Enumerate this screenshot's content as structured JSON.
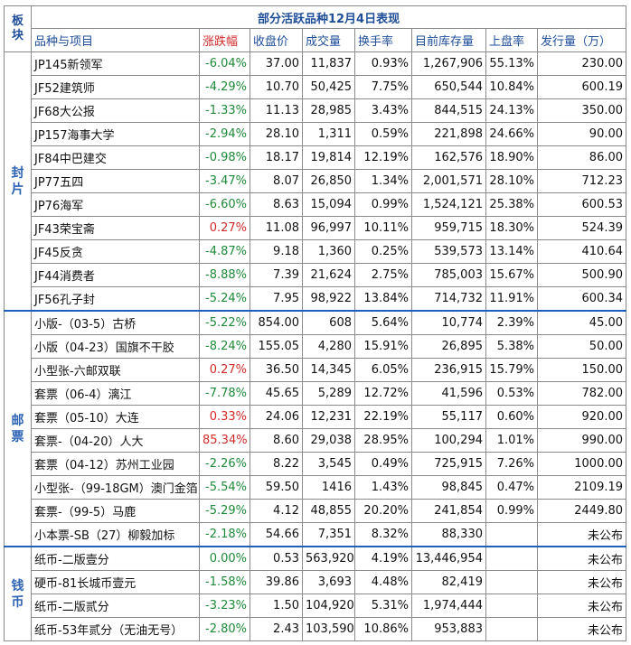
{
  "title": "部分活跃品种12月4日表现",
  "headers": {
    "category": "板块",
    "name": "品种与项目",
    "change": "涨跌幅",
    "close": "收盘价",
    "volume": "成交量",
    "turnover": "换手率",
    "stock": "目前库存量",
    "listing": "上盘率",
    "issue": "发行量（万）"
  },
  "sections": [
    {
      "category": "封片",
      "rows": [
        {
          "name": "JP145新领军",
          "change": "-6.04%",
          "close": "37.00",
          "volume": "11,837",
          "turnover": "0.93%",
          "stock": "1,267,906",
          "listing": "55.13%",
          "issue": "230.00"
        },
        {
          "name": "JF52建筑师",
          "change": "-4.29%",
          "close": "10.70",
          "volume": "50,425",
          "turnover": "7.75%",
          "stock": "650,544",
          "listing": "10.84%",
          "issue": "600.19"
        },
        {
          "name": "JF68大公报",
          "change": "-1.33%",
          "close": "11.13",
          "volume": "28,985",
          "turnover": "3.43%",
          "stock": "844,515",
          "listing": "24.13%",
          "issue": "350.00"
        },
        {
          "name": "JP157海事大学",
          "change": "-2.94%",
          "close": "28.10",
          "volume": "1,311",
          "turnover": "0.59%",
          "stock": "221,898",
          "listing": "24.66%",
          "issue": "90.00"
        },
        {
          "name": "JF84中巴建交",
          "change": "-0.98%",
          "close": "18.17",
          "volume": "19,814",
          "turnover": "12.19%",
          "stock": "162,576",
          "listing": "18.90%",
          "issue": "86.00"
        },
        {
          "name": "JP77五四",
          "change": "-3.47%",
          "close": "8.07",
          "volume": "26,850",
          "turnover": "1.34%",
          "stock": "2,001,571",
          "listing": "28.10%",
          "issue": "712.23"
        },
        {
          "name": "JP76海军",
          "change": "-6.60%",
          "close": "8.63",
          "volume": "15,094",
          "turnover": "0.99%",
          "stock": "1,524,121",
          "listing": "25.38%",
          "issue": "600.53"
        },
        {
          "name": "JF43荣宝斋",
          "change": "0.27%",
          "close": "11.08",
          "volume": "96,997",
          "turnover": "10.11%",
          "stock": "959,715",
          "listing": "18.30%",
          "issue": "524.39"
        },
        {
          "name": "JF45反贪",
          "change": "-4.87%",
          "close": "9.18",
          "volume": "1,360",
          "turnover": "0.25%",
          "stock": "539,573",
          "listing": "13.14%",
          "issue": "410.64"
        },
        {
          "name": "JF44消费者",
          "change": "-8.88%",
          "close": "7.39",
          "volume": "21,624",
          "turnover": "2.75%",
          "stock": "785,003",
          "listing": "15.67%",
          "issue": "500.90"
        },
        {
          "name": "JF56孔子封",
          "change": "-5.24%",
          "close": "7.95",
          "volume": "98,922",
          "turnover": "13.84%",
          "stock": "714,732",
          "listing": "11.91%",
          "issue": "600.34"
        }
      ]
    },
    {
      "category": "邮票",
      "rows": [
        {
          "name": "小版-（03-5）古桥",
          "change": "-5.22%",
          "close": "854.00",
          "volume": "608",
          "turnover": "5.64%",
          "stock": "10,774",
          "listing": "2.39%",
          "issue": "45.00"
        },
        {
          "name": "小版（04-23）国旗不干胶",
          "change": "-8.24%",
          "close": "155.05",
          "volume": "4,280",
          "turnover": "15.91%",
          "stock": "26,895",
          "listing": "5.38%",
          "issue": "50.00"
        },
        {
          "name": "小型张-六邮双联",
          "change": "0.27%",
          "close": "36.50",
          "volume": "14,345",
          "turnover": "6.05%",
          "stock": "236,915",
          "listing": "15.79%",
          "issue": "150.00"
        },
        {
          "name": "套票（06-4）漓江",
          "change": "-7.78%",
          "close": "45.65",
          "volume": "5,289",
          "turnover": "12.72%",
          "stock": "41,596",
          "listing": "0.53%",
          "issue": "782.00"
        },
        {
          "name": "套票（05-10）大连",
          "change": "0.33%",
          "close": "24.06",
          "volume": "12,231",
          "turnover": "22.19%",
          "stock": "55,117",
          "listing": "0.60%",
          "issue": "920.00"
        },
        {
          "name": "套票-（04-20）人大",
          "change": "85.34%",
          "close": "8.60",
          "volume": "29,038",
          "turnover": "28.95%",
          "stock": "100,294",
          "listing": "1.01%",
          "issue": "990.00"
        },
        {
          "name": "套票（04-12）苏州工业园",
          "change": "-2.26%",
          "close": "8.22",
          "volume": "3,545",
          "turnover": "0.49%",
          "stock": "725,915",
          "listing": "7.26%",
          "issue": "1000.00"
        },
        {
          "name": "小型张-（99-18GM）澳门金箔",
          "change": "-5.54%",
          "close": "59.50",
          "volume": "1416",
          "turnover": "1.43%",
          "stock": "98,845",
          "listing": "0.47%",
          "issue": "2109.19"
        },
        {
          "name": "套票-（99-5）马鹿",
          "change": "-5.29%",
          "close": "4.12",
          "volume": "48,855",
          "turnover": "20.20%",
          "stock": "241,854",
          "listing": "0.99%",
          "issue": "2449.80"
        },
        {
          "name": "小本票-SB（27）柳毅加标",
          "change": "-2.18%",
          "close": "54.66",
          "volume": "7,351",
          "turnover": "8.32%",
          "stock": "88,330",
          "listing": "",
          "issue": "未公布"
        }
      ]
    },
    {
      "category": "钱币",
      "rows": [
        {
          "name": "纸币-二版壹分",
          "change": "0.00%",
          "close": "0.53",
          "volume": "563,920",
          "turnover": "4.19%",
          "stock": "13,446,954",
          "listing": "",
          "issue": "未公布"
        },
        {
          "name": "硬币-81长城币壹元",
          "change": "-1.58%",
          "close": "39.86",
          "volume": "3,693",
          "turnover": "4.48%",
          "stock": "82,419",
          "listing": "",
          "issue": "未公布"
        },
        {
          "name": "纸币-二版贰分",
          "change": "-3.23%",
          "close": "1.50",
          "volume": "104,920",
          "turnover": "5.31%",
          "stock": "1,974,444",
          "listing": "",
          "issue": "未公布"
        },
        {
          "name": "纸币-53年贰分（无油无号）",
          "change": "-2.80%",
          "close": "2.43",
          "volume": "103,590",
          "turnover": "10.86%",
          "stock": "953,883",
          "listing": "",
          "issue": "未公布"
        }
      ]
    }
  ],
  "colors": {
    "up": "#d12b2b",
    "down": "#1f8a3a",
    "header": "#1f4e99",
    "category": "#2d64b4"
  }
}
